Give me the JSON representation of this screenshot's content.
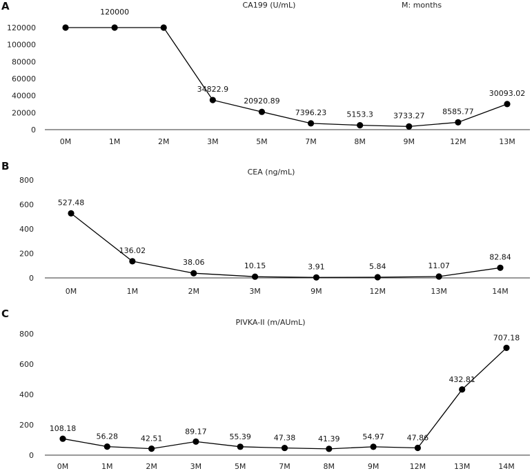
{
  "chart_data": [
    {
      "type": "line",
      "panel": "A",
      "title": "CA199 (U/mL)",
      "note": "M: months",
      "categories": [
        "0M",
        "1M",
        "2M",
        "3M",
        "5M",
        "7M",
        "8M",
        "9M",
        "12M",
        "13M"
      ],
      "values": [
        120000,
        120000,
        120000,
        34822.9,
        20920.89,
        7396.23,
        5153.3,
        3733.27,
        8585.77,
        30093.02
      ],
      "data_labels": [
        "",
        "120000",
        "",
        "34822.9",
        "20920.89",
        "7396.23",
        "5153.3",
        "3733.27",
        "8585.77",
        "30093.02"
      ],
      "yticks": [
        "0",
        "20000",
        "40000",
        "60000",
        "80000",
        "100000",
        "120000"
      ],
      "ylim": [
        0,
        120000
      ],
      "xlabel": "",
      "ylabel": ""
    },
    {
      "type": "line",
      "panel": "B",
      "title": "CEA (ng/mL)",
      "categories": [
        "0M",
        "1M",
        "2M",
        "3M",
        "9M",
        "12M",
        "13M",
        "14M"
      ],
      "values": [
        527.48,
        136.02,
        38.06,
        10.15,
        3.91,
        5.84,
        11.07,
        82.84
      ],
      "data_labels": [
        "527.48",
        "136.02",
        "38.06",
        "10.15",
        "3.91",
        "5.84",
        "11.07",
        "82.84"
      ],
      "yticks": [
        "0",
        "200",
        "400",
        "600",
        "800"
      ],
      "ylim": [
        0,
        800
      ],
      "xlabel": "",
      "ylabel": ""
    },
    {
      "type": "line",
      "panel": "C",
      "title": "PIVKA-II (m/AUmL)",
      "categories": [
        "0M",
        "1M",
        "2M",
        "3M",
        "5M",
        "7M",
        "8M",
        "9M",
        "12M",
        "13M",
        "14M"
      ],
      "values": [
        108.18,
        56.28,
        42.51,
        89.17,
        55.39,
        47.38,
        41.39,
        54.97,
        47.86,
        432.81,
        707.18
      ],
      "data_labels": [
        "108.18",
        "56.28",
        "42.51",
        "89.17",
        "55.39",
        "47.38",
        "41.39",
        "54.97",
        "47.86",
        "432.81",
        "707.18"
      ],
      "yticks": [
        "0",
        "200",
        "400",
        "600",
        "800"
      ],
      "ylim": [
        0,
        800
      ],
      "xlabel": "",
      "ylabel": ""
    }
  ]
}
